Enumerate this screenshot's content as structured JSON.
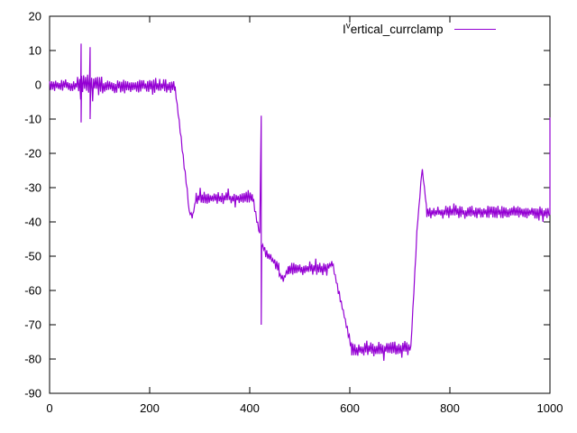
{
  "window": {
    "background": "#ffffff"
  },
  "chart_data": {
    "type": "line",
    "title": "",
    "xlabel": "",
    "ylabel": "",
    "xlim": [
      0,
      1000
    ],
    "ylim": [
      -90,
      20
    ],
    "grid": false,
    "legend_position": "top-right-inside",
    "legend": {
      "prefix": "I",
      "sup": "v",
      "rest": "ertical_currclamp"
    },
    "line_color": "#9400d3",
    "axis_color": "#000000",
    "tick_style": "inward-mirrored",
    "xticks": [
      0,
      200,
      400,
      600,
      800,
      1000
    ],
    "xtick_labels": [
      "0",
      "200",
      "400",
      "600",
      "800",
      "1000"
    ],
    "yticks": [
      20,
      10,
      0,
      -10,
      -20,
      -30,
      -40,
      -50,
      -60,
      -70,
      -80,
      -90
    ],
    "ytick_labels": [
      "20",
      "10",
      "0",
      "-10",
      "-20",
      "-30",
      "-40",
      "-50",
      "-60",
      "-70",
      "-80",
      "-90"
    ],
    "signal": {
      "description": "Noisy stepped clamp-current trace: ~0 until x=250 (voltage-like spikes +12/-11 near x=63 and x=81), step to -33 until x=420, spike -9/-70 at x=423, level -54 with dip to -58, falls to -77 band for x=604..722, sharp peak to -23.5 at x=744, then -37 band to x=1000 ending with spike to -9.5",
      "noise_seed": 11,
      "sample_step": 2,
      "segments": [
        {
          "x0": 0,
          "x1": 56,
          "v0": -0.2,
          "v1": -0.2,
          "amp": 1.8
        },
        {
          "x0": 56,
          "x1": 106,
          "v0": 0,
          "v1": 0,
          "amp": 3.1
        },
        {
          "x0": 106,
          "x1": 251,
          "v0": -0.4,
          "v1": -0.4,
          "amp": 2.1
        },
        {
          "x0": 251,
          "x1": 279,
          "v0": -1,
          "v1": -36,
          "amp": 1.0
        },
        {
          "x0": 279,
          "x1": 286,
          "v0": -37,
          "v1": -38.5,
          "amp": 0.7
        },
        {
          "x0": 286,
          "x1": 293,
          "v0": -38,
          "v1": -33,
          "amp": 0.6
        },
        {
          "x0": 293,
          "x1": 406,
          "v0": -33,
          "v1": -33,
          "amp": 1.8
        },
        {
          "x0": 406,
          "x1": 422,
          "v0": -33.5,
          "v1": -45,
          "amp": 0.9
        },
        {
          "x0": 424,
          "x1": 430,
          "v0": -47,
          "v1": -48,
          "amp": 1.0
        },
        {
          "x0": 430,
          "x1": 459,
          "v0": -48.5,
          "v1": -53.5,
          "amp": 1.5
        },
        {
          "x0": 459,
          "x1": 467,
          "v0": -55,
          "v1": -57.5,
          "amp": 0.9
        },
        {
          "x0": 467,
          "x1": 478,
          "v0": -57,
          "v1": -53.5,
          "amp": 0.9
        },
        {
          "x0": 478,
          "x1": 558,
          "v0": -53.8,
          "v1": -53.8,
          "amp": 1.9
        },
        {
          "x0": 558,
          "x1": 565,
          "v0": -53,
          "v1": -51.5,
          "amp": 0.8
        },
        {
          "x0": 565,
          "x1": 604,
          "v0": -52,
          "v1": -77,
          "amp": 1.1
        },
        {
          "x0": 604,
          "x1": 722,
          "v0": -77.3,
          "v1": -76.8,
          "amp": 2.1
        },
        {
          "x0": 722,
          "x1": 734,
          "v0": -76.5,
          "v1": -44,
          "amp": 0.7
        },
        {
          "x0": 734,
          "x1": 745,
          "v0": -43,
          "v1": -23.5,
          "amp": 0.5
        },
        {
          "x0": 745,
          "x1": 754,
          "v0": -25,
          "v1": -36.5,
          "amp": 0.6
        },
        {
          "x0": 754,
          "x1": 1000,
          "v0": -37.2,
          "v1": -37.2,
          "amp": 1.9
        }
      ],
      "spikes": [
        {
          "x": 63,
          "values": [
            12,
            -11
          ]
        },
        {
          "x": 81,
          "values": [
            11,
            -10
          ]
        },
        {
          "x": 423,
          "values": [
            -9,
            -70
          ]
        },
        {
          "x": 1000,
          "values": [
            -37.8,
            -9.5
          ]
        }
      ]
    }
  }
}
